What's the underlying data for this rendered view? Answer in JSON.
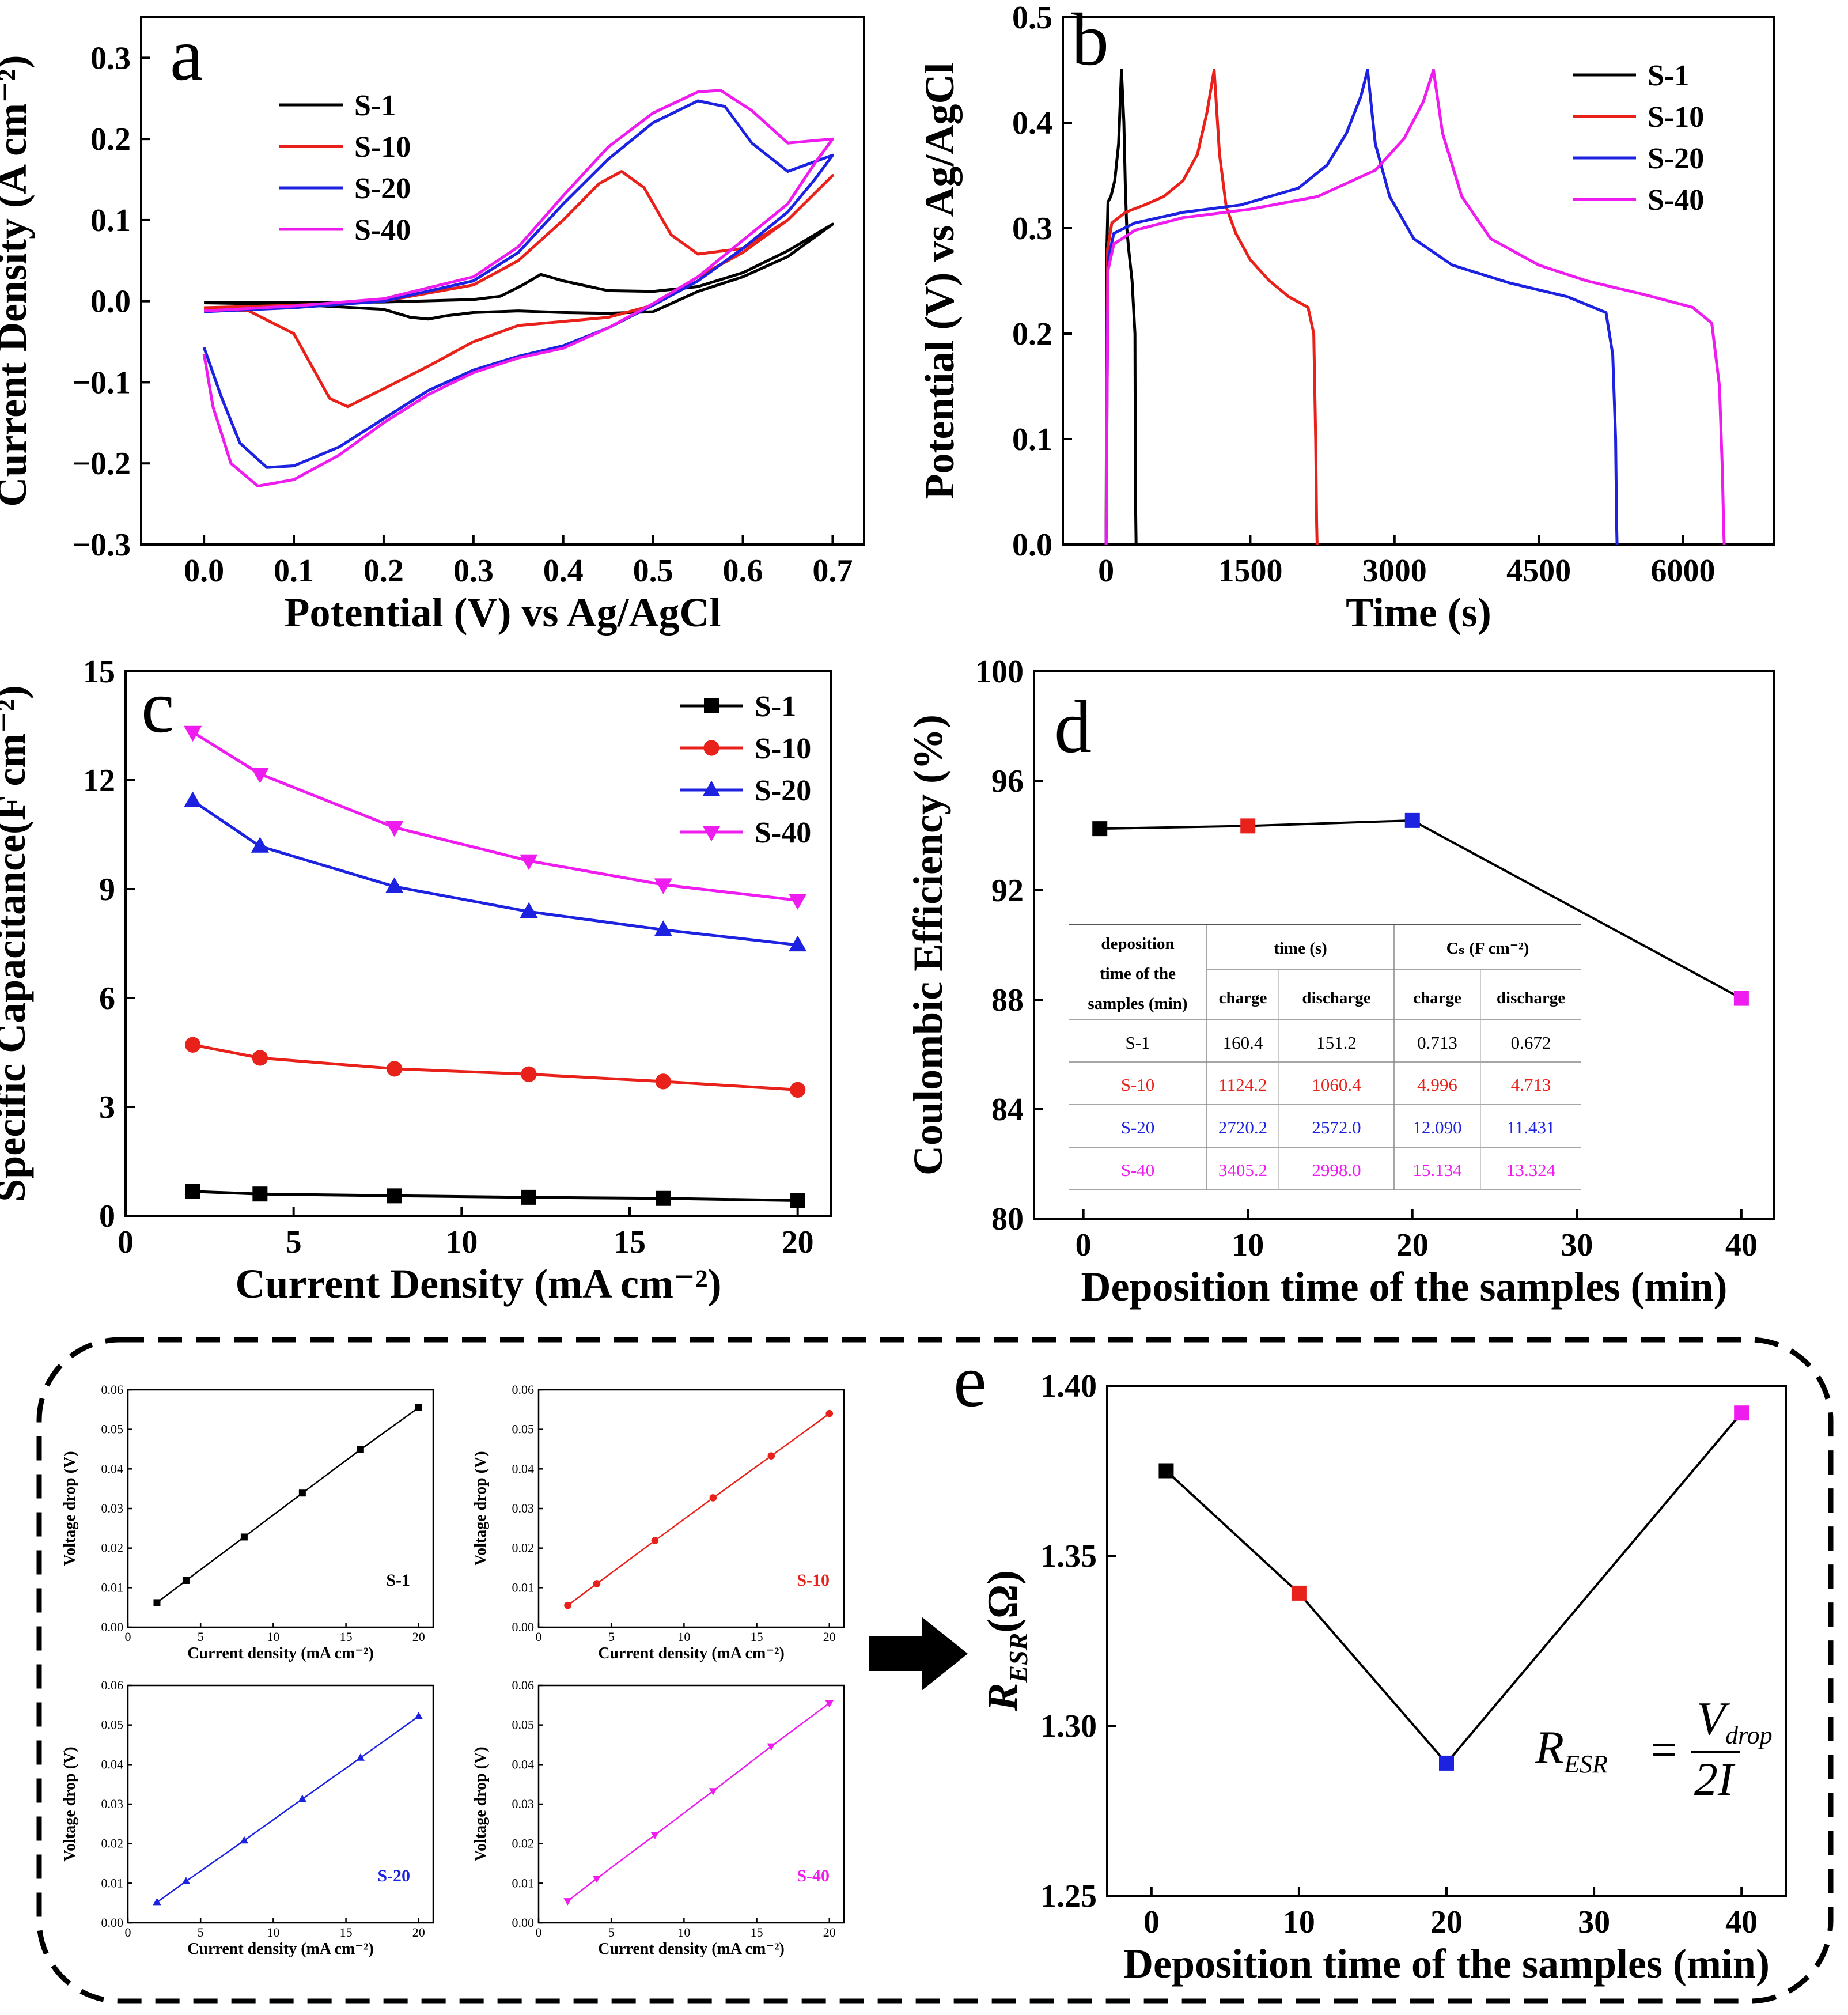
{
  "colors": {
    "S-1": "#000000",
    "S-10": "#e8221b",
    "S-20": "#1c22e0",
    "S-40": "#ee1cee"
  },
  "chart_data": [
    {
      "panel": "a",
      "type": "line",
      "title": "",
      "xlabel": "Potential (V) vs Ag/AgCl",
      "ylabel": "Current Density (A cm⁻²)",
      "xlim": [
        -0.07,
        0.735
      ],
      "ylim": [
        -0.3,
        0.35
      ],
      "xticks": [
        0.0,
        0.1,
        0.2,
        0.3,
        0.4,
        0.5,
        0.6,
        0.7
      ],
      "xtick_labels": [
        "0.0",
        "0.1",
        "0.2",
        "0.3",
        "0.4",
        "0.5",
        "0.6",
        "0.7"
      ],
      "yticks": [
        -0.3,
        -0.2,
        -0.1,
        0.0,
        0.1,
        0.2,
        0.3
      ],
      "ytick_labels": [
        "−0.3",
        "−0.2",
        "−0.1",
        "0.0",
        "0.1",
        "0.2",
        "0.3"
      ],
      "legend_position": "top-left",
      "series": [
        {
          "name": "S-1",
          "x": [
            0.0,
            0.1,
            0.2,
            0.3,
            0.33,
            0.355,
            0.375,
            0.4,
            0.45,
            0.5,
            0.55,
            0.6,
            0.65,
            0.7,
            0.65,
            0.6,
            0.55,
            0.5,
            0.45,
            0.4,
            0.35,
            0.3,
            0.27,
            0.25,
            0.23,
            0.2,
            0.1,
            0.0
          ],
          "y": [
            -0.002,
            -0.002,
            -0.001,
            0.002,
            0.006,
            0.02,
            0.033,
            0.025,
            0.013,
            0.012,
            0.018,
            0.035,
            0.062,
            0.095,
            0.055,
            0.03,
            0.012,
            -0.013,
            -0.015,
            -0.014,
            -0.012,
            -0.014,
            -0.018,
            -0.022,
            -0.02,
            -0.01,
            -0.004,
            -0.002
          ]
        },
        {
          "name": "S-10",
          "x": [
            0.0,
            0.1,
            0.2,
            0.3,
            0.35,
            0.4,
            0.44,
            0.465,
            0.49,
            0.52,
            0.55,
            0.6,
            0.65,
            0.7,
            0.65,
            0.6,
            0.55,
            0.5,
            0.45,
            0.4,
            0.35,
            0.3,
            0.25,
            0.2,
            0.16,
            0.14,
            0.12,
            0.1,
            0.05,
            0.0
          ],
          "y": [
            -0.008,
            -0.005,
            0.0,
            0.02,
            0.05,
            0.1,
            0.145,
            0.16,
            0.14,
            0.082,
            0.058,
            0.065,
            0.1,
            0.155,
            0.1,
            0.06,
            0.03,
            -0.005,
            -0.02,
            -0.025,
            -0.03,
            -0.05,
            -0.08,
            -0.108,
            -0.13,
            -0.12,
            -0.08,
            -0.04,
            -0.012,
            -0.008
          ]
        },
        {
          "name": "S-20",
          "x": [
            0.0,
            0.1,
            0.2,
            0.3,
            0.35,
            0.4,
            0.45,
            0.5,
            0.55,
            0.58,
            0.61,
            0.65,
            0.7,
            0.68,
            0.65,
            0.6,
            0.55,
            0.5,
            0.45,
            0.4,
            0.35,
            0.3,
            0.25,
            0.2,
            0.15,
            0.1,
            0.07,
            0.04,
            0.02,
            0.0
          ],
          "y": [
            -0.013,
            -0.008,
            0.0,
            0.025,
            0.06,
            0.12,
            0.175,
            0.22,
            0.247,
            0.24,
            0.195,
            0.16,
            0.18,
            0.15,
            0.11,
            0.065,
            0.025,
            -0.005,
            -0.033,
            -0.055,
            -0.068,
            -0.085,
            -0.11,
            -0.145,
            -0.18,
            -0.203,
            -0.205,
            -0.175,
            -0.12,
            -0.057
          ]
        },
        {
          "name": "S-40",
          "x": [
            0.0,
            0.1,
            0.2,
            0.3,
            0.35,
            0.4,
            0.45,
            0.5,
            0.55,
            0.575,
            0.61,
            0.65,
            0.7,
            0.68,
            0.65,
            0.6,
            0.55,
            0.5,
            0.45,
            0.4,
            0.35,
            0.3,
            0.25,
            0.2,
            0.15,
            0.1,
            0.06,
            0.03,
            0.01,
            0.0
          ],
          "y": [
            -0.012,
            -0.006,
            0.003,
            0.03,
            0.067,
            0.13,
            0.19,
            0.232,
            0.258,
            0.26,
            0.235,
            0.195,
            0.2,
            0.17,
            0.12,
            0.075,
            0.03,
            -0.003,
            -0.033,
            -0.058,
            -0.07,
            -0.088,
            -0.115,
            -0.15,
            -0.19,
            -0.22,
            -0.228,
            -0.2,
            -0.13,
            -0.065
          ]
        }
      ]
    },
    {
      "panel": "b",
      "type": "line",
      "title": "",
      "xlabel": "Time (s)",
      "ylabel": "Potential (V) vs Ag/AgCl",
      "xlim": [
        -450,
        6950
      ],
      "ylim": [
        0.0,
        0.5
      ],
      "xticks": [
        0,
        1500,
        3000,
        4500,
        6000
      ],
      "xtick_labels": [
        "0",
        "1500",
        "3000",
        "4500",
        "6000"
      ],
      "yticks": [
        0.0,
        0.1,
        0.2,
        0.3,
        0.4,
        0.5
      ],
      "ytick_labels": [
        "0.0",
        "0.1",
        "0.2",
        "0.3",
        "0.4",
        "0.5"
      ],
      "legend_position": "top-right",
      "series": [
        {
          "name": "S-1",
          "x": [
            0,
            8,
            20,
            50,
            90,
            130,
            160,
            185,
            200,
            215,
            235,
            270,
            300,
            305,
            312
          ],
          "y": [
            0.0,
            0.28,
            0.325,
            0.33,
            0.345,
            0.38,
            0.45,
            0.4,
            0.34,
            0.3,
            0.28,
            0.25,
            0.2,
            0.05,
            0.0
          ]
        },
        {
          "name": "S-10",
          "x": [
            0,
            15,
            60,
            200,
            400,
            600,
            800,
            950,
            1050,
            1124,
            1180,
            1250,
            1350,
            1500,
            1700,
            1900,
            2100,
            2160,
            2180,
            2190,
            2195
          ],
          "y": [
            0.0,
            0.28,
            0.305,
            0.315,
            0.322,
            0.33,
            0.345,
            0.37,
            0.41,
            0.45,
            0.37,
            0.32,
            0.295,
            0.27,
            0.25,
            0.235,
            0.225,
            0.2,
            0.1,
            0.02,
            0.0
          ]
        },
        {
          "name": "S-20",
          "x": [
            0,
            20,
            80,
            300,
            800,
            1400,
            2000,
            2300,
            2500,
            2650,
            2720,
            2800,
            2950,
            3200,
            3600,
            4200,
            4800,
            5200,
            5270,
            5300,
            5310,
            5315
          ],
          "y": [
            0.0,
            0.27,
            0.295,
            0.305,
            0.315,
            0.322,
            0.338,
            0.36,
            0.39,
            0.425,
            0.45,
            0.38,
            0.33,
            0.29,
            0.265,
            0.248,
            0.235,
            0.22,
            0.18,
            0.1,
            0.02,
            0.0
          ]
        },
        {
          "name": "S-40",
          "x": [
            0,
            20,
            80,
            300,
            800,
            1500,
            2200,
            2800,
            3100,
            3300,
            3405,
            3500,
            3700,
            4000,
            4500,
            5000,
            5600,
            6100,
            6300,
            6380,
            6410,
            6425,
            6430
          ],
          "y": [
            0.0,
            0.26,
            0.285,
            0.298,
            0.31,
            0.318,
            0.33,
            0.355,
            0.385,
            0.42,
            0.45,
            0.39,
            0.33,
            0.29,
            0.265,
            0.25,
            0.237,
            0.225,
            0.21,
            0.15,
            0.07,
            0.01,
            0.0
          ]
        }
      ]
    },
    {
      "panel": "c",
      "type": "line",
      "title": "",
      "xlabel": "Current Density (mA cm⁻²)",
      "ylabel": "Specific Capacitance(F cm⁻²)",
      "xlim": [
        0,
        21
      ],
      "ylim": [
        0,
        15
      ],
      "xticks": [
        0,
        5,
        10,
        15,
        20
      ],
      "xtick_labels": [
        "0",
        "5",
        "10",
        "15",
        "20"
      ],
      "yticks": [
        0,
        3,
        6,
        9,
        12,
        15
      ],
      "ytick_labels": [
        "0",
        "3",
        "6",
        "9",
        "12",
        "15"
      ],
      "legend_position": "top-right",
      "categories": [
        2,
        4,
        8,
        12,
        16,
        20
      ],
      "series": [
        {
          "name": "S-1",
          "marker": "square",
          "values": [
            0.67,
            0.6,
            0.55,
            0.51,
            0.48,
            0.42
          ]
        },
        {
          "name": "S-10",
          "marker": "circle",
          "values": [
            4.71,
            4.35,
            4.05,
            3.9,
            3.7,
            3.47
          ]
        },
        {
          "name": "S-20",
          "marker": "triangle-up",
          "values": [
            11.43,
            10.18,
            9.07,
            8.38,
            7.88,
            7.46
          ]
        },
        {
          "name": "S-40",
          "marker": "triangle-down",
          "values": [
            13.32,
            12.17,
            10.7,
            9.78,
            9.12,
            8.69
          ]
        }
      ]
    },
    {
      "panel": "d",
      "type": "line",
      "title": "",
      "xlabel": "Deposition time of the samples (min)",
      "ylabel": "Coulombic Efficiency (%)",
      "xlim": [
        -3,
        42
      ],
      "ylim": [
        80,
        100
      ],
      "xticks": [
        0,
        10,
        20,
        30,
        40
      ],
      "xtick_labels": [
        "0",
        "10",
        "20",
        "30",
        "40"
      ],
      "yticks": [
        80,
        84,
        88,
        92,
        96,
        100
      ],
      "ytick_labels": [
        "80",
        "84",
        "88",
        "92",
        "96",
        "100"
      ],
      "legend_position": "none",
      "series": [
        {
          "name": "Coulombic efficiency",
          "x": [
            1,
            10,
            20,
            40
          ],
          "y": [
            94.25,
            94.35,
            94.55,
            88.05
          ],
          "point_series": [
            "S-1",
            "S-10",
            "S-20",
            "S-40"
          ]
        }
      ],
      "table": {
        "header_col1": [
          "deposition",
          "time of the",
          "samples (min)"
        ],
        "group_headers": [
          "time (s)",
          "Cₛ (F cm⁻²)"
        ],
        "sub_headers": [
          "charge",
          "discharge",
          "charge",
          "discharge"
        ],
        "rows": [
          {
            "sample": "S-1",
            "values": [
              "160.4",
              "151.2",
              "0.713",
              "0.672"
            ]
          },
          {
            "sample": "S-10",
            "values": [
              "1124.2",
              "1060.4",
              "4.996",
              "4.713"
            ]
          },
          {
            "sample": "S-20",
            "values": [
              "2720.2",
              "2572.0",
              "12.090",
              "11.431"
            ]
          },
          {
            "sample": "S-40",
            "values": [
              "3405.2",
              "2998.0",
              "15.134",
              "13.324"
            ]
          }
        ]
      }
    },
    {
      "panel": "e",
      "type": "line",
      "title": "",
      "xlabel": "Deposition time of the samples (min)",
      "ylabel": "R_ESR (Ω)",
      "xlim": [
        -3,
        43
      ],
      "ylim": [
        1.25,
        1.4
      ],
      "xticks": [
        0,
        10,
        20,
        30,
        40
      ],
      "xtick_labels": [
        "0",
        "10",
        "20",
        "30",
        "40"
      ],
      "yticks": [
        1.25,
        1.3,
        1.35,
        1.4
      ],
      "ytick_labels": [
        "1.25",
        "1.30",
        "1.35",
        "1.40"
      ],
      "legend_position": "none",
      "series": [
        {
          "name": "R_ESR",
          "x": [
            1,
            10,
            20,
            40
          ],
          "y": [
            1.375,
            1.339,
            1.289,
            1.392
          ],
          "point_series": [
            "S-1",
            "S-10",
            "S-20",
            "S-40"
          ]
        }
      ]
    },
    {
      "panel": "e-inset",
      "type": "line",
      "title": "",
      "xlabel": "Current density (mA cm⁻²)",
      "ylabel": "Voltage drop (V)",
      "xlim": [
        0,
        21
      ],
      "ylim": [
        0,
        0.06
      ],
      "xticks": [
        0,
        5,
        10,
        15,
        20
      ],
      "xtick_labels": [
        "0",
        "5",
        "10",
        "15",
        "20"
      ],
      "yticks": [
        0,
        0.01,
        0.02,
        0.03,
        0.04,
        0.05,
        0.06
      ],
      "ytick_labels": [
        "0.00",
        "0.01",
        "0.02",
        "0.03",
        "0.04",
        "0.05",
        "0.06"
      ],
      "categories": [
        2,
        4,
        8,
        12,
        16,
        20
      ],
      "series": [
        {
          "name": "S-1",
          "marker": "square",
          "values": [
            0.0062,
            0.0118,
            0.0228,
            0.0339,
            0.0449,
            0.0555
          ]
        },
        {
          "name": "S-10",
          "marker": "circle",
          "values": [
            0.0055,
            0.011,
            0.0219,
            0.0327,
            0.0433,
            0.054
          ]
        },
        {
          "name": "S-20",
          "marker": "triangle-up",
          "values": [
            0.0052,
            0.0105,
            0.0208,
            0.0313,
            0.0417,
            0.0522
          ]
        },
        {
          "name": "S-40",
          "marker": "triangle-down",
          "values": [
            0.0055,
            0.0112,
            0.0222,
            0.0333,
            0.0446,
            0.0555
          ]
        }
      ]
    }
  ],
  "annotations": {
    "panel_letters": [
      "a",
      "b",
      "c",
      "d",
      "e"
    ],
    "formula": {
      "lhs_main": "R",
      "lhs_sub": "ESR",
      "numerator_main": "V",
      "numerator_sub": "drop",
      "denominator": "2I"
    }
  }
}
